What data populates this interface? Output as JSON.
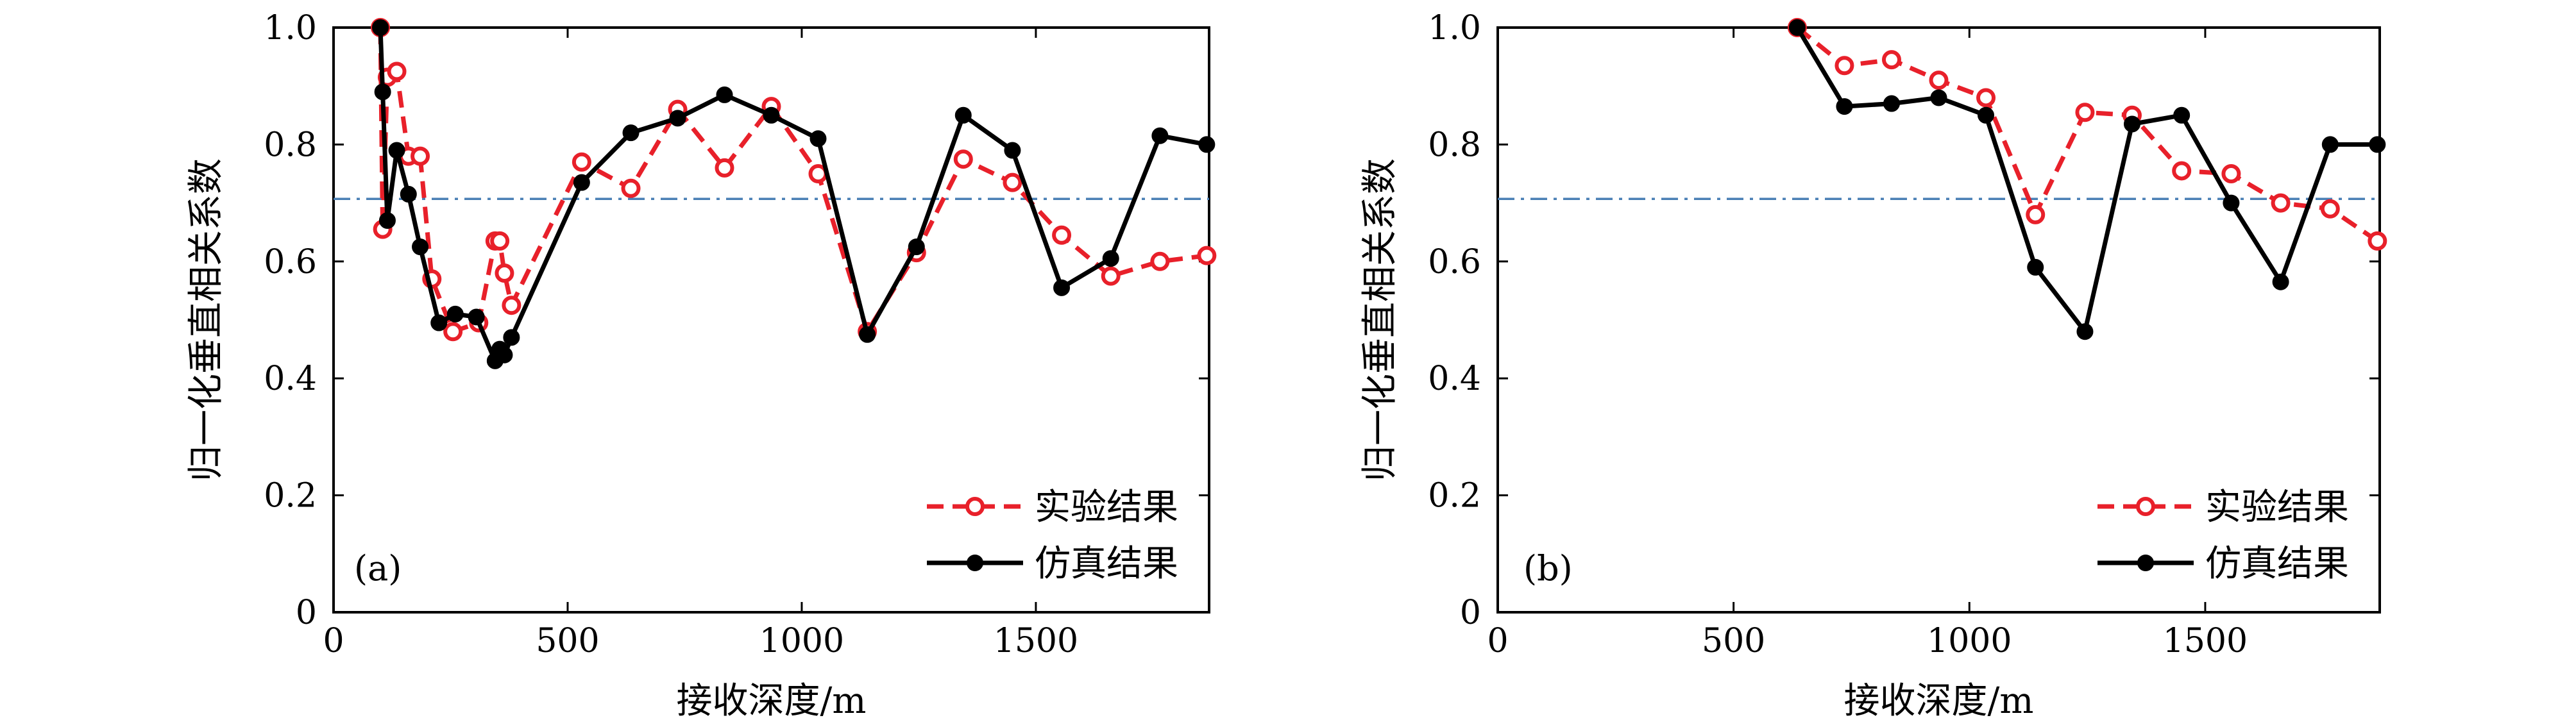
{
  "chart_data": [
    {
      "type": "line",
      "panel_label": "(a)",
      "xlabel": "接收深度/m",
      "ylabel": "归一化垂直相关系数",
      "xlim": [
        0,
        1870
      ],
      "ylim": [
        0,
        1.0
      ],
      "xticks": [
        0,
        500,
        1000,
        1500
      ],
      "yticks": [
        0,
        0.2,
        0.4,
        0.6,
        0.8,
        1.0
      ],
      "xtick_labels": [
        "0",
        "500",
        "1000",
        "1500"
      ],
      "ytick_labels": [
        "0",
        "0.2",
        "0.4",
        "0.6",
        "0.8",
        "1.0"
      ],
      "reference_line": {
        "y": 0.707,
        "style": "dash-dot",
        "color": "#4a7fb5"
      },
      "legend_position": "bottom-right",
      "series": [
        {
          "name": "实验结果",
          "color": "#e8202a",
          "line_style": "dashed",
          "marker": "open-circle",
          "x": [
            100,
            105,
            115,
            135,
            160,
            185,
            210,
            255,
            310,
            345,
            355,
            365,
            380,
            530,
            635,
            735,
            835,
            935,
            1035,
            1140,
            1245,
            1345,
            1450,
            1555,
            1660,
            1765,
            1865
          ],
          "y": [
            1.0,
            0.655,
            0.915,
            0.925,
            0.78,
            0.78,
            0.57,
            0.48,
            0.495,
            0.635,
            0.635,
            0.58,
            0.525,
            0.77,
            0.725,
            0.86,
            0.76,
            0.865,
            0.75,
            0.48,
            0.615,
            0.775,
            0.735,
            0.645,
            0.575,
            0.6,
            0.61
          ]
        },
        {
          "name": "仿真结果",
          "color": "#000000",
          "line_style": "solid",
          "marker": "filled-circle",
          "x": [
            100,
            105,
            115,
            135,
            160,
            185,
            225,
            260,
            305,
            345,
            355,
            365,
            380,
            530,
            635,
            735,
            835,
            935,
            1035,
            1140,
            1245,
            1345,
            1450,
            1555,
            1660,
            1765,
            1865
          ],
          "y": [
            1.0,
            0.89,
            0.67,
            0.79,
            0.715,
            0.625,
            0.495,
            0.51,
            0.505,
            0.43,
            0.45,
            0.44,
            0.47,
            0.735,
            0.82,
            0.845,
            0.885,
            0.85,
            0.81,
            0.475,
            0.625,
            0.85,
            0.79,
            0.555,
            0.605,
            0.815,
            0.8
          ]
        }
      ]
    },
    {
      "type": "line",
      "panel_label": "(b)",
      "xlabel": "接收深度/m",
      "ylabel": "归一化垂直相关系数",
      "xlim": [
        0,
        1870
      ],
      "ylim": [
        0,
        1.0
      ],
      "xticks": [
        0,
        500,
        1000,
        1500
      ],
      "yticks": [
        0,
        0.2,
        0.4,
        0.6,
        0.8,
        1.0
      ],
      "xtick_labels": [
        "0",
        "500",
        "1000",
        "1500"
      ],
      "ytick_labels": [
        "0",
        "0.2",
        "0.4",
        "0.6",
        "0.8",
        "1.0"
      ],
      "reference_line": {
        "y": 0.707,
        "style": "dash-dot",
        "color": "#4a7fb5"
      },
      "legend_position": "bottom-right",
      "series": [
        {
          "name": "实验结果",
          "color": "#e8202a",
          "line_style": "dashed",
          "marker": "open-circle",
          "x": [
            635,
            735,
            835,
            935,
            1035,
            1140,
            1245,
            1345,
            1450,
            1555,
            1660,
            1765,
            1865
          ],
          "y": [
            1.0,
            0.935,
            0.945,
            0.91,
            0.88,
            0.68,
            0.855,
            0.85,
            0.755,
            0.75,
            0.7,
            0.69,
            0.635
          ]
        },
        {
          "name": "仿真结果",
          "color": "#000000",
          "line_style": "solid",
          "marker": "filled-circle",
          "x": [
            635,
            735,
            835,
            935,
            1035,
            1140,
            1245,
            1345,
            1450,
            1555,
            1660,
            1765,
            1865
          ],
          "y": [
            1.0,
            0.865,
            0.87,
            0.88,
            0.85,
            0.59,
            0.48,
            0.835,
            0.85,
            0.7,
            0.565,
            0.8,
            0.8
          ]
        }
      ]
    }
  ]
}
